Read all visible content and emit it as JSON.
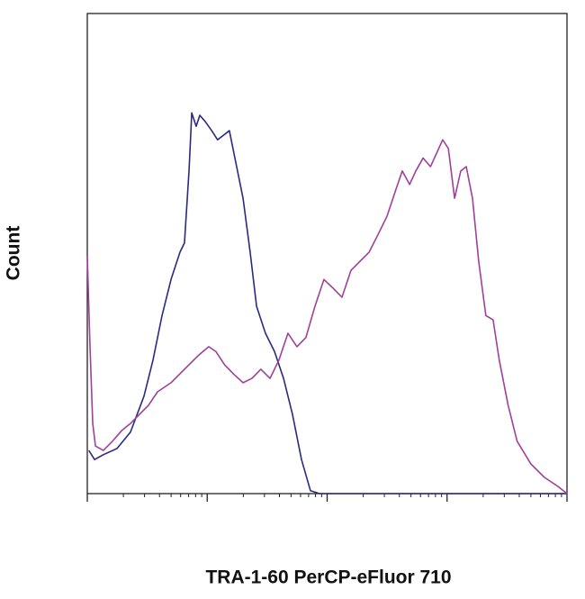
{
  "chart_data": {
    "type": "line",
    "x_label": "TRA-1-60 PerCP-eFluor 710",
    "y_label": "Count",
    "xscale": "log",
    "xlim": [
      1,
      10000
    ],
    "xticks": [
      1,
      10,
      100,
      1000,
      10000
    ],
    "minor_ticks": true,
    "ylim": [
      0,
      100
    ],
    "series": [
      {
        "color": "#2b2a7e",
        "x": [
          1.03,
          1.15,
          1.36,
          1.77,
          2.29,
          2.97,
          3.53,
          4.2,
          4.99,
          5.93,
          6.46,
          7.05,
          7.43,
          8.09,
          8.67,
          9.62,
          10.9,
          12.2,
          13.6,
          15.3,
          17.3,
          19.9,
          22.8,
          25.8,
          30.6,
          36.4,
          43.3,
          51.4,
          61.1,
          72.6,
          86.3,
          10000
        ],
        "values": [
          9.0,
          7.1,
          8.1,
          9.4,
          12.8,
          20.3,
          27.8,
          37.1,
          44.6,
          50.3,
          52.2,
          67.2,
          79.3,
          76.5,
          78.8,
          77.5,
          75.6,
          73.7,
          74.6,
          75.6,
          69.0,
          61.5,
          50.3,
          39.0,
          33.4,
          29.6,
          24.0,
          16.5,
          7.1,
          0.6,
          0,
          0
        ]
      },
      {
        "color": "#a0409a",
        "x": [
          1,
          1.05,
          1.11,
          1.17,
          1.36,
          1.62,
          1.93,
          2.29,
          2.72,
          3.24,
          3.85,
          4.99,
          6.46,
          8.37,
          10.3,
          11.8,
          14.0,
          16.6,
          19.9,
          23.6,
          28.0,
          33.4,
          39.6,
          47.1,
          56.0,
          66.5,
          79.1,
          94.0,
          112,
          133,
          158,
          188,
          224,
          266,
          316,
          375,
          423,
          487,
          549,
          631,
          727,
          818,
          919,
          1025,
          1155,
          1300,
          1445,
          1630,
          1835,
          2105,
          2420,
          2725,
          3230,
          3840,
          4990,
          6470,
          8400,
          10000
        ],
        "values": [
          49.5,
          31.7,
          14.6,
          9.9,
          9.0,
          10.9,
          13.1,
          14.6,
          16.5,
          18.4,
          21.2,
          23.1,
          25.9,
          28.7,
          30.6,
          29.6,
          26.8,
          24.9,
          23.1,
          24.0,
          25.9,
          24.0,
          27.8,
          33.4,
          30.6,
          32.5,
          39.0,
          44.6,
          42.8,
          40.9,
          46.5,
          48.4,
          50.3,
          54.0,
          57.8,
          63.4,
          67.2,
          64.4,
          67.2,
          69.9,
          68.1,
          70.9,
          73.7,
          71.9,
          61.5,
          67.2,
          68.1,
          61.5,
          48.4,
          37.1,
          36.2,
          27.8,
          18.4,
          10.9,
          6.2,
          3.4,
          1.5,
          0
        ]
      }
    ]
  }
}
